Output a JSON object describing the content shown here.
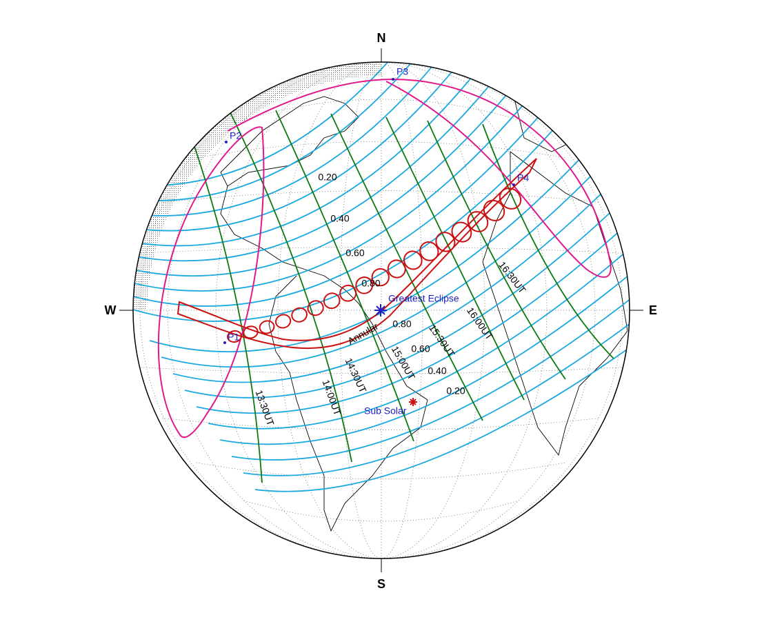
{
  "compass": {
    "north": "N",
    "south": "S",
    "west": "W",
    "east": "E"
  },
  "contact_points": [
    "P1",
    "P2",
    "P3",
    "P4"
  ],
  "greatest_eclipse": "Greatest Eclipse",
  "sub_solar": "Sub Solar",
  "path_label": "Annular",
  "magnitude_labels_north": [
    "0.20",
    "0.40",
    "0.60",
    "0.80"
  ],
  "magnitude_labels_south": [
    "0.80",
    "0.60",
    "0.40",
    "0.20"
  ],
  "time_labels": [
    "13:30UT",
    "14:00UT",
    "14:30UT",
    "15:00UT",
    "15:30UT",
    "16:00UT",
    "16:30UT"
  ]
}
